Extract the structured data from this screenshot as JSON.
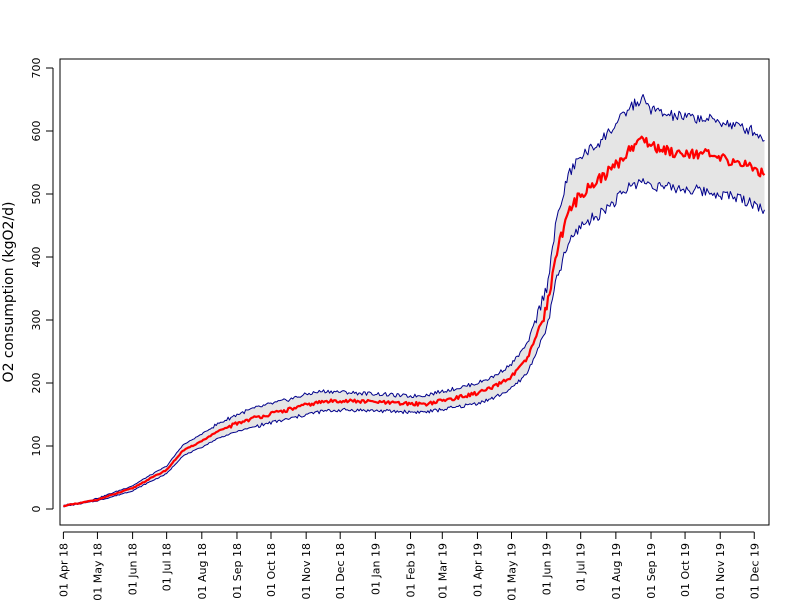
{
  "chart_data": {
    "type": "line",
    "title": "",
    "xlabel": "",
    "ylabel": "O2 consumption (kgO2/d)",
    "ylim": [
      0,
      700
    ],
    "y_ticks": [
      0,
      100,
      200,
      300,
      400,
      500,
      600,
      700
    ],
    "grid": false,
    "x_range": [
      "2018-03-29",
      "2019-12-14"
    ],
    "x_tick_dates": [
      "2018-04-01",
      "2018-05-01",
      "2018-06-01",
      "2018-07-01",
      "2018-08-01",
      "2018-09-01",
      "2018-10-01",
      "2018-11-01",
      "2018-12-01",
      "2019-01-01",
      "2019-02-01",
      "2019-03-01",
      "2019-04-01",
      "2019-05-01",
      "2019-06-01",
      "2019-07-01",
      "2019-08-01",
      "2019-09-01",
      "2019-10-01",
      "2019-11-01",
      "2019-12-01"
    ],
    "x_tick_labels": [
      "01 Apr 18",
      "01 May 18",
      "01 Jun 18",
      "01 Jul 18",
      "01 Aug 18",
      "01 Sep 18",
      "01 Oct 18",
      "01 Nov 18",
      "01 Dec 18",
      "01 Jan 19",
      "01 Feb 19",
      "01 Mar 19",
      "01 Apr 19",
      "01 May 19",
      "01 Jun 19",
      "01 Jul 19",
      "01 Aug 19",
      "01 Sep 19",
      "01 Oct 19",
      "01 Nov 19",
      "01 Dec 19"
    ],
    "band_fill": "#e5e5e5",
    "series": [
      {
        "role": "mean",
        "color": "#ff0000",
        "x": [
          "2018-04-01",
          "2018-04-15",
          "2018-05-01",
          "2018-05-15",
          "2018-06-01",
          "2018-06-15",
          "2018-07-01",
          "2018-07-15",
          "2018-08-01",
          "2018-08-15",
          "2018-09-01",
          "2018-09-15",
          "2018-10-01",
          "2018-10-15",
          "2018-11-01",
          "2018-11-15",
          "2018-12-01",
          "2018-12-15",
          "2019-01-01",
          "2019-01-15",
          "2019-02-01",
          "2019-02-15",
          "2019-03-01",
          "2019-03-15",
          "2019-04-01",
          "2019-04-15",
          "2019-05-01",
          "2019-05-15",
          "2019-06-01",
          "2019-06-10",
          "2019-06-20",
          "2019-07-01",
          "2019-07-15",
          "2019-08-01",
          "2019-08-15",
          "2019-08-25",
          "2019-09-01",
          "2019-09-15",
          "2019-10-01",
          "2019-10-15",
          "2019-11-01",
          "2019-11-15",
          "2019-12-01",
          "2019-12-10"
        ],
        "y": [
          5,
          9,
          15,
          23,
          33,
          47,
          62,
          92,
          108,
          123,
          136,
          144,
          151,
          157,
          165,
          170,
          172,
          171,
          170,
          168,
          167,
          167,
          172,
          177,
          184,
          193,
          210,
          238,
          318,
          410,
          470,
          500,
          520,
          545,
          575,
          588,
          578,
          568,
          566,
          565,
          555,
          552,
          540,
          530
        ]
      },
      {
        "role": "upper",
        "color": "#00008b",
        "x": [
          "2018-04-01",
          "2018-04-15",
          "2018-05-01",
          "2018-05-15",
          "2018-06-01",
          "2018-06-15",
          "2018-07-01",
          "2018-07-15",
          "2018-08-01",
          "2018-08-15",
          "2018-09-01",
          "2018-09-15",
          "2018-10-01",
          "2018-10-15",
          "2018-11-01",
          "2018-11-15",
          "2018-12-01",
          "2018-12-15",
          "2019-01-01",
          "2019-01-15",
          "2019-02-01",
          "2019-02-15",
          "2019-03-01",
          "2019-03-15",
          "2019-04-01",
          "2019-04-15",
          "2019-05-01",
          "2019-05-15",
          "2019-06-01",
          "2019-06-10",
          "2019-06-20",
          "2019-07-01",
          "2019-07-15",
          "2019-08-01",
          "2019-08-15",
          "2019-08-25",
          "2019-09-01",
          "2019-09-15",
          "2019-10-01",
          "2019-10-15",
          "2019-11-01",
          "2019-11-15",
          "2019-12-01",
          "2019-12-10"
        ],
        "y": [
          6,
          10,
          17,
          26,
          37,
          52,
          68,
          101,
          119,
          135,
          150,
          159,
          167,
          173,
          182,
          187,
          186,
          184,
          183,
          181,
          179,
          181,
          187,
          192,
          200,
          210,
          230,
          262,
          352,
          460,
          530,
          560,
          578,
          610,
          640,
          650,
          635,
          625,
          622,
          620,
          615,
          608,
          600,
          585
        ]
      },
      {
        "role": "lower",
        "color": "#00008b",
        "x": [
          "2018-04-01",
          "2018-04-15",
          "2018-05-01",
          "2018-05-15",
          "2018-06-01",
          "2018-06-15",
          "2018-07-01",
          "2018-07-15",
          "2018-08-01",
          "2018-08-15",
          "2018-09-01",
          "2018-09-15",
          "2018-10-01",
          "2018-10-15",
          "2018-11-01",
          "2018-11-15",
          "2018-12-01",
          "2018-12-15",
          "2019-01-01",
          "2019-01-15",
          "2019-02-01",
          "2019-02-15",
          "2019-03-01",
          "2019-03-15",
          "2019-04-01",
          "2019-04-15",
          "2019-05-01",
          "2019-05-15",
          "2019-06-01",
          "2019-06-10",
          "2019-06-20",
          "2019-07-01",
          "2019-07-15",
          "2019-08-01",
          "2019-08-15",
          "2019-08-25",
          "2019-09-01",
          "2019-09-15",
          "2019-10-01",
          "2019-10-15",
          "2019-11-01",
          "2019-11-15",
          "2019-12-01",
          "2019-12-10"
        ],
        "y": [
          4,
          8,
          13,
          20,
          29,
          42,
          56,
          84,
          98,
          112,
          123,
          130,
          137,
          142,
          150,
          155,
          157,
          157,
          156,
          155,
          154,
          154,
          158,
          162,
          168,
          176,
          191,
          216,
          287,
          365,
          420,
          450,
          465,
          490,
          515,
          520,
          515,
          510,
          508,
          505,
          500,
          495,
          485,
          475
        ]
      }
    ]
  }
}
